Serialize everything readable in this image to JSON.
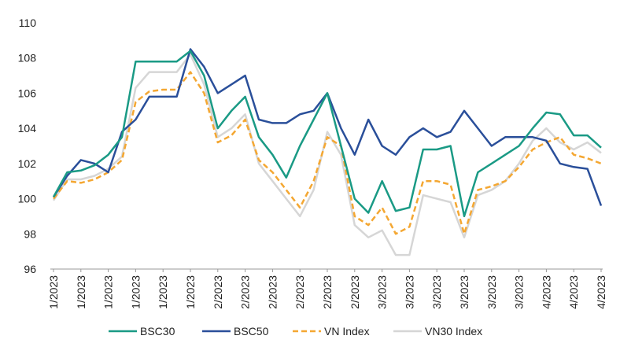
{
  "chart_data": {
    "type": "line",
    "categories": [
      "1/2023",
      null,
      "1/2023",
      null,
      "1/2023",
      null,
      "1/2023",
      null,
      "1/2023",
      null,
      "1/2023",
      null,
      "2/2023",
      null,
      "2/2023",
      null,
      "2/2023",
      null,
      "2/2023",
      null,
      "2/2023",
      null,
      "2/2023",
      null,
      "3/2023",
      null,
      "3/2023",
      null,
      "3/2023",
      null,
      "3/2023",
      null,
      "3/2023",
      null,
      "3/2023",
      null,
      "4/2023",
      null,
      "4/2023",
      null,
      "4/2023"
    ],
    "series": [
      {
        "name": "BSC30",
        "color": "#1a9a85",
        "dash": false,
        "values": [
          100.1,
          101.5,
          101.6,
          101.9,
          102.5,
          103.5,
          107.8,
          107.8,
          107.8,
          107.8,
          108.4,
          107.0,
          104.0,
          105.0,
          105.8,
          103.5,
          102.5,
          101.2,
          103.0,
          104.5,
          106.0,
          103.0,
          100.0,
          99.2,
          101.0,
          99.3,
          99.5,
          102.8,
          102.8,
          103.0,
          99.0,
          101.5,
          102.0,
          102.5,
          103.0,
          104.0,
          104.9,
          104.8,
          103.6,
          103.6,
          102.9
        ]
      },
      {
        "name": "BSC50",
        "color": "#2a4f9a",
        "dash": false,
        "values": [
          100.1,
          101.3,
          102.2,
          102.0,
          101.5,
          103.8,
          104.5,
          105.8,
          105.8,
          105.8,
          108.5,
          107.5,
          106.0,
          106.5,
          107.0,
          104.5,
          104.3,
          104.3,
          104.8,
          105.0,
          106.0,
          104.0,
          102.5,
          104.5,
          103.0,
          102.5,
          103.5,
          104.0,
          103.5,
          103.8,
          105.0,
          104.0,
          103.0,
          103.5,
          103.5,
          103.5,
          103.3,
          102.0,
          101.8,
          101.7,
          99.6
        ]
      },
      {
        "name": "VN Index",
        "color": "#f4a732",
        "dash": true,
        "values": [
          100.0,
          101.0,
          100.9,
          101.1,
          101.5,
          102.2,
          105.5,
          106.1,
          106.2,
          106.2,
          107.2,
          106.0,
          103.2,
          103.6,
          104.5,
          102.2,
          101.5,
          100.5,
          99.5,
          101.0,
          103.5,
          103.0,
          99.0,
          98.5,
          99.5,
          98.0,
          98.4,
          101.0,
          101.0,
          100.8,
          98.0,
          100.5,
          100.7,
          101.0,
          101.8,
          102.8,
          103.2,
          103.5,
          102.5,
          102.3,
          102.0
        ]
      },
      {
        "name": "VN30 Index",
        "color": "#d6d6d6",
        "dash": false,
        "values": [
          99.9,
          101.1,
          101.1,
          101.3,
          101.7,
          102.4,
          106.3,
          107.2,
          107.2,
          107.2,
          108.2,
          106.5,
          103.5,
          104.0,
          104.8,
          102.0,
          101.0,
          100.0,
          99.0,
          100.5,
          103.8,
          102.5,
          98.5,
          97.8,
          98.2,
          96.8,
          96.8,
          100.2,
          100.0,
          99.8,
          97.8,
          100.2,
          100.5,
          101.0,
          102.0,
          103.3,
          104.0,
          103.2,
          102.8,
          103.2,
          102.6
        ]
      }
    ],
    "ylim": [
      96,
      110
    ],
    "yticks": [
      96,
      98,
      100,
      102,
      104,
      106,
      108,
      110
    ],
    "grid": false,
    "legend": "bottom"
  }
}
